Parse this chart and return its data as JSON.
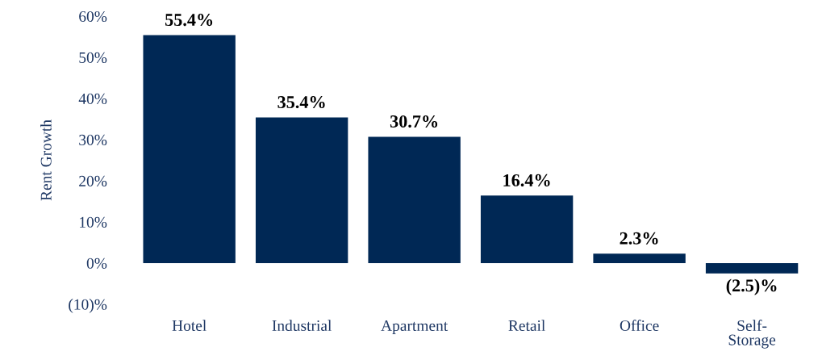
{
  "chart_data": {
    "type": "bar",
    "ylabel": "Rent Growth",
    "categories": [
      "Hotel",
      "Industrial",
      "Apartment",
      "Retail",
      "Office",
      "Self-\nStorage"
    ],
    "values": [
      55.4,
      35.4,
      30.7,
      16.4,
      2.3,
      -2.5
    ],
    "value_labels": [
      "55.4%",
      "35.4%",
      "30.7%",
      "16.4%",
      "2.3%",
      "(2.5)%"
    ],
    "color": "#002855",
    "ylim": [
      -10,
      60
    ],
    "yticks": [
      {
        "value": -10,
        "label": "(10)%"
      },
      {
        "value": 0,
        "label": "0%"
      },
      {
        "value": 10,
        "label": "10%"
      },
      {
        "value": 20,
        "label": "20%"
      },
      {
        "value": 30,
        "label": "30%"
      },
      {
        "value": 40,
        "label": "40%"
      },
      {
        "value": 50,
        "label": "50%"
      },
      {
        "value": 60,
        "label": "60%"
      }
    ],
    "grid": false
  }
}
